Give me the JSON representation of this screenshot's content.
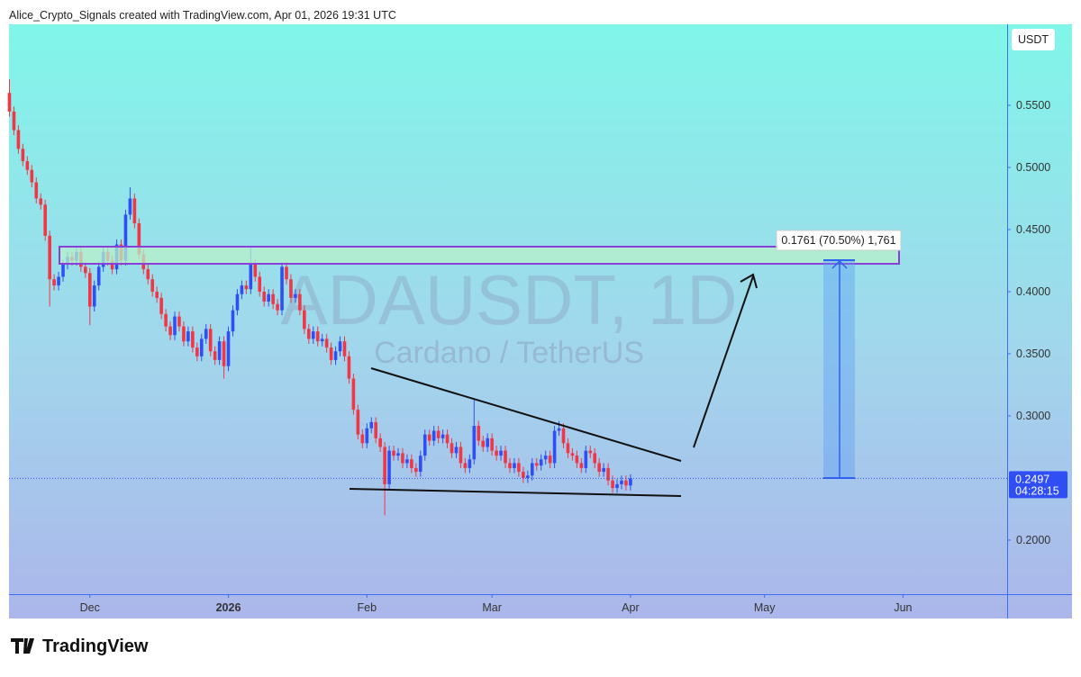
{
  "header": "Alice_Crypto_Signals created with TradingView.com, Apr 01, 2026 19:31 UTC",
  "brand": "TradingView",
  "chart_data": {
    "type": "candlestick",
    "symbol_watermark": "ADAUSDT, 1D",
    "description": "Cardano / TetherUS",
    "currency": "USDT",
    "countdown": "04:28:15",
    "measure_label": "0.1761 (70.50%) 1,761",
    "up_color": "#2f4ff5",
    "down_color": "#f23645",
    "xlim": [
      -0.1,
      223.3
    ],
    "xticks": [
      {
        "value": 18,
        "label": "Dec"
      },
      {
        "value": 49,
        "label": "2026"
      },
      {
        "value": 80,
        "label": "Feb"
      },
      {
        "value": 108,
        "label": "Mar"
      },
      {
        "value": 139,
        "label": "Apr"
      },
      {
        "value": 169,
        "label": "May"
      },
      {
        "value": 200,
        "label": "Jun"
      }
    ],
    "ylim": [
      0.1565,
      0.6152
    ],
    "yticks": [
      {
        "value": 0.2,
        "label": "0.2000"
      },
      {
        "value": 0.3,
        "label": "0.3000"
      },
      {
        "value": 0.35,
        "label": "0.3500"
      },
      {
        "value": 0.4,
        "label": "0.4000"
      },
      {
        "value": 0.45,
        "label": "0.4500"
      },
      {
        "value": 0.5,
        "label": "0.5000"
      },
      {
        "value": 0.55,
        "label": "0.5500"
      }
    ],
    "open": [
      0.56,
      0.545,
      0.53,
      0.515,
      0.505,
      0.498,
      0.488,
      0.475,
      0.47,
      0.445,
      0.41,
      0.405,
      0.412,
      0.422,
      0.428,
      0.425,
      0.432,
      0.42,
      0.415,
      0.388,
      0.405,
      0.42,
      0.432,
      0.425,
      0.418,
      0.438,
      0.425,
      0.462,
      0.475,
      0.455,
      0.43,
      0.418,
      0.41,
      0.4,
      0.395,
      0.382,
      0.372,
      0.365,
      0.38,
      0.372,
      0.36,
      0.368,
      0.355,
      0.348,
      0.362,
      0.37,
      0.352,
      0.345,
      0.36,
      0.34,
      0.368,
      0.385,
      0.398,
      0.405,
      0.402,
      0.422,
      0.412,
      0.4,
      0.392,
      0.398,
      0.39,
      0.385,
      0.42,
      0.41,
      0.395,
      0.398,
      0.385,
      0.37,
      0.362,
      0.368,
      0.36,
      0.362,
      0.355,
      0.345,
      0.352,
      0.36,
      0.348,
      0.33,
      0.305,
      0.285,
      0.278,
      0.29,
      0.295,
      0.282,
      0.275,
      0.245,
      0.272,
      0.268,
      0.27,
      0.262,
      0.265,
      0.258,
      0.255,
      0.268,
      0.285,
      0.28,
      0.288,
      0.282,
      0.285,
      0.278,
      0.27,
      0.275,
      0.262,
      0.258,
      0.265,
      0.292,
      0.28,
      0.275,
      0.282,
      0.272,
      0.268,
      0.272,
      0.262,
      0.258,
      0.262,
      0.255,
      0.25,
      0.252,
      0.262,
      0.26,
      0.265,
      0.268,
      0.262,
      0.288,
      0.29,
      0.278,
      0.27,
      0.268,
      0.262,
      0.258,
      0.272,
      0.27,
      0.262,
      0.255,
      0.258,
      0.248,
      0.242,
      0.245,
      0.248,
      0.244
    ],
    "high": [
      0.571,
      0.549,
      0.534,
      0.519,
      0.509,
      0.502,
      0.492,
      0.479,
      0.474,
      0.449,
      0.414,
      0.416,
      0.426,
      0.432,
      0.432,
      0.436,
      0.436,
      0.424,
      0.419,
      0.409,
      0.424,
      0.436,
      0.436,
      0.429,
      0.442,
      0.442,
      0.466,
      0.484,
      0.479,
      0.459,
      0.434,
      0.422,
      0.414,
      0.404,
      0.399,
      0.386,
      0.376,
      0.384,
      0.384,
      0.376,
      0.372,
      0.372,
      0.359,
      0.366,
      0.374,
      0.374,
      0.356,
      0.364,
      0.364,
      0.372,
      0.389,
      0.402,
      0.409,
      0.409,
      0.435,
      0.426,
      0.416,
      0.404,
      0.402,
      0.402,
      0.394,
      0.424,
      0.424,
      0.414,
      0.402,
      0.402,
      0.389,
      0.374,
      0.372,
      0.372,
      0.366,
      0.366,
      0.359,
      0.356,
      0.364,
      0.364,
      0.352,
      0.334,
      0.309,
      0.289,
      0.294,
      0.299,
      0.299,
      0.286,
      0.279,
      0.276,
      0.276,
      0.274,
      0.274,
      0.269,
      0.269,
      0.262,
      0.272,
      0.289,
      0.289,
      0.292,
      0.292,
      0.289,
      0.289,
      0.282,
      0.279,
      0.279,
      0.266,
      0.269,
      0.314,
      0.296,
      0.284,
      0.286,
      0.286,
      0.276,
      0.276,
      0.276,
      0.266,
      0.266,
      0.266,
      0.259,
      0.256,
      0.266,
      0.266,
      0.269,
      0.272,
      0.272,
      0.292,
      0.296,
      0.294,
      0.282,
      0.274,
      0.272,
      0.266,
      0.276,
      0.276,
      0.274,
      0.266,
      0.262,
      0.262,
      0.252,
      0.249,
      0.252,
      0.252,
      0.253
    ],
    "low": [
      0.541,
      0.526,
      0.511,
      0.501,
      0.494,
      0.484,
      0.471,
      0.466,
      0.441,
      0.388,
      0.401,
      0.401,
      0.408,
      0.418,
      0.421,
      0.421,
      0.416,
      0.411,
      0.373,
      0.384,
      0.401,
      0.416,
      0.421,
      0.414,
      0.414,
      0.421,
      0.421,
      0.458,
      0.451,
      0.426,
      0.414,
      0.406,
      0.396,
      0.391,
      0.378,
      0.368,
      0.361,
      0.361,
      0.368,
      0.356,
      0.356,
      0.351,
      0.344,
      0.344,
      0.358,
      0.348,
      0.341,
      0.341,
      0.33,
      0.336,
      0.364,
      0.381,
      0.394,
      0.398,
      0.398,
      0.408,
      0.396,
      0.388,
      0.388,
      0.386,
      0.381,
      0.381,
      0.406,
      0.391,
      0.391,
      0.381,
      0.366,
      0.358,
      0.358,
      0.356,
      0.356,
      0.351,
      0.341,
      0.341,
      0.348,
      0.344,
      0.326,
      0.301,
      0.281,
      0.274,
      0.274,
      0.286,
      0.278,
      0.271,
      0.22,
      0.241,
      0.264,
      0.264,
      0.258,
      0.258,
      0.254,
      0.251,
      0.251,
      0.264,
      0.276,
      0.276,
      0.278,
      0.278,
      0.274,
      0.266,
      0.266,
      0.258,
      0.254,
      0.254,
      0.261,
      0.276,
      0.271,
      0.271,
      0.268,
      0.264,
      0.264,
      0.258,
      0.254,
      0.254,
      0.251,
      0.246,
      0.246,
      0.248,
      0.256,
      0.256,
      0.261,
      0.258,
      0.258,
      0.284,
      0.274,
      0.266,
      0.264,
      0.258,
      0.254,
      0.254,
      0.266,
      0.258,
      0.251,
      0.251,
      0.244,
      0.238,
      0.238,
      0.241,
      0.24,
      0.24
    ],
    "close": [
      0.545,
      0.53,
      0.515,
      0.505,
      0.498,
      0.488,
      0.475,
      0.47,
      0.445,
      0.41,
      0.405,
      0.412,
      0.422,
      0.428,
      0.425,
      0.432,
      0.42,
      0.415,
      0.388,
      0.405,
      0.42,
      0.432,
      0.425,
      0.418,
      0.438,
      0.425,
      0.462,
      0.475,
      0.455,
      0.43,
      0.418,
      0.41,
      0.4,
      0.395,
      0.382,
      0.372,
      0.365,
      0.38,
      0.372,
      0.36,
      0.368,
      0.355,
      0.348,
      0.362,
      0.37,
      0.352,
      0.345,
      0.36,
      0.34,
      0.368,
      0.385,
      0.398,
      0.405,
      0.402,
      0.422,
      0.412,
      0.4,
      0.392,
      0.398,
      0.39,
      0.385,
      0.42,
      0.41,
      0.395,
      0.398,
      0.385,
      0.37,
      0.362,
      0.368,
      0.36,
      0.362,
      0.355,
      0.345,
      0.352,
      0.36,
      0.348,
      0.33,
      0.305,
      0.285,
      0.278,
      0.29,
      0.295,
      0.282,
      0.275,
      0.245,
      0.272,
      0.268,
      0.27,
      0.262,
      0.265,
      0.258,
      0.255,
      0.268,
      0.285,
      0.28,
      0.288,
      0.282,
      0.285,
      0.278,
      0.27,
      0.275,
      0.262,
      0.258,
      0.265,
      0.292,
      0.28,
      0.275,
      0.282,
      0.272,
      0.268,
      0.272,
      0.262,
      0.258,
      0.262,
      0.255,
      0.25,
      0.252,
      0.262,
      0.26,
      0.265,
      0.268,
      0.262,
      0.288,
      0.29,
      0.278,
      0.27,
      0.268,
      0.262,
      0.258,
      0.272,
      0.27,
      0.262,
      0.255,
      0.258,
      0.248,
      0.242,
      0.245,
      0.248,
      0.244,
      0.2497
    ]
  }
}
